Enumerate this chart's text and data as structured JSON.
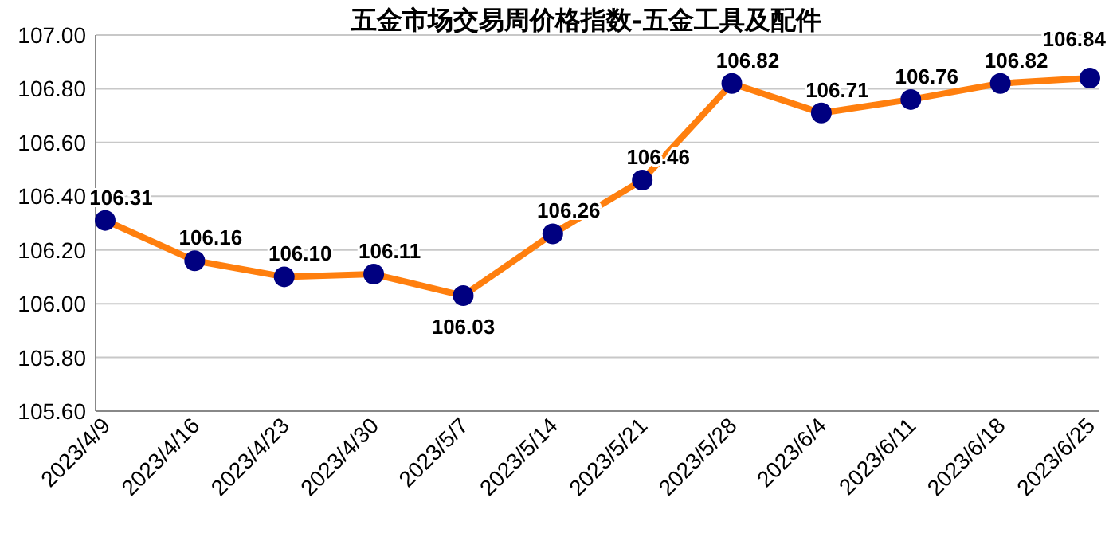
{
  "chart_data": {
    "type": "line",
    "title": "五金市场交易周价格指数-五金工具及配件",
    "categories": [
      "2023/4/9",
      "2023/4/16",
      "2023/4/23",
      "2023/4/30",
      "2023/5/7",
      "2023/5/14",
      "2023/5/21",
      "2023/5/28",
      "2023/6/4",
      "2023/6/11",
      "2023/6/18",
      "2023/6/25"
    ],
    "series": [
      {
        "color": "#ff7f0e",
        "colors": [
          "#000080",
          "#000080",
          "#000080",
          "#000080",
          "#000080",
          "#000080",
          "#000080",
          "#000080",
          "#000080",
          "#000080",
          "#000080",
          "#000080"
        ],
        "values": [
          106.31,
          106.16,
          106.1,
          106.11,
          106.03,
          106.26,
          106.46,
          106.82,
          106.71,
          106.76,
          106.82,
          106.84
        ],
        "value_labels": [
          "106.31",
          "106.16",
          "106.10",
          "106.11",
          "106.03",
          "106.26",
          "106.46",
          "106.82",
          "106.71",
          "106.76",
          "106.82",
          "106.84"
        ]
      }
    ],
    "ylim": [
      105.6,
      107.0
    ],
    "yticks": [
      {
        "value": 105.6,
        "label": "105.60"
      },
      {
        "value": 105.8,
        "label": "105.80"
      },
      {
        "value": 106.0,
        "label": "106.00"
      },
      {
        "value": 106.2,
        "label": "106.20"
      },
      {
        "value": 106.4,
        "label": "106.40"
      },
      {
        "value": 106.6,
        "label": "106.60"
      },
      {
        "value": 106.8,
        "label": "106.80"
      },
      {
        "value": 107.0,
        "label": "107.00"
      }
    ],
    "grid": "y",
    "marker": "circle",
    "line_style": "solid"
  }
}
